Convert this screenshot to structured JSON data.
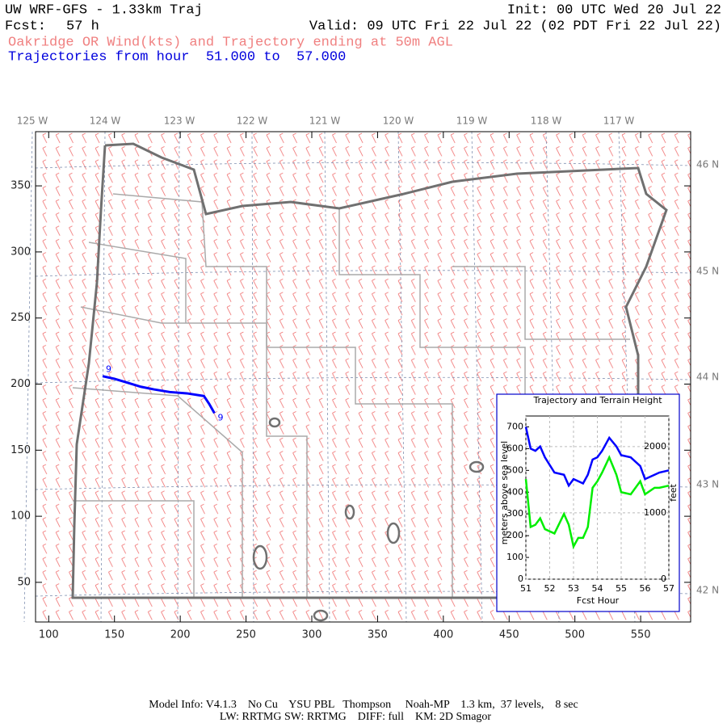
{
  "header": {
    "title": "UW WRF-GFS - 1.33km Traj",
    "init": "Init: 00 UTC Wed 20 Jul 22",
    "fcst_label": "Fcst:",
    "fcst": "57 h",
    "valid": "Valid: 09 UTC Fri 22 Jul 22 (02 PDT Fri 22 Jul 22)",
    "subtitle": "Oakridge OR Wind(kts) and Trajectory ending at 50m AGL",
    "trajectories": "Trajectories from hour  51.000 to  57.000"
  },
  "map": {
    "type": "trajectory-map",
    "xlim": [
      90,
      588
    ],
    "ylim": [
      20,
      391
    ],
    "xticks": [
      100,
      150,
      200,
      250,
      300,
      350,
      400,
      450,
      500,
      550
    ],
    "yticks": [
      50,
      100,
      150,
      200,
      250,
      300,
      350
    ],
    "lon_labels": [
      "125 W",
      "124 W",
      "123 W",
      "122 W",
      "121 W",
      "120 W",
      "119 W",
      "118 W",
      "117 W"
    ],
    "lat_labels": [
      "46 N",
      "45 N",
      "44 N",
      "43 N",
      "42 N"
    ],
    "trajectory": {
      "color": "#0000ff",
      "x": [
        141,
        150,
        160,
        170,
        180,
        192,
        205,
        218,
        222,
        226
      ],
      "y": [
        206,
        204,
        201,
        198,
        196,
        194,
        193,
        191,
        185,
        178
      ]
    },
    "trajectory_labels": [
      "9",
      "9"
    ]
  },
  "chart_data": {
    "type": "line",
    "title": "Trajectory and Terrain Height",
    "x_label": "Fcst Hour",
    "y_label": "meters above sea level",
    "y2_label": "feet",
    "x": [
      51,
      51.2,
      51.4,
      51.6,
      51.8,
      52.2,
      52.6,
      52.8,
      53.0,
      53.2,
      53.4,
      53.6,
      53.8,
      54.0,
      54.2,
      54.5,
      54.8,
      55.0,
      55.4,
      55.8,
      56.0,
      56.4,
      56.6,
      57.0
    ],
    "xlim": [
      51,
      57
    ],
    "xticks": [
      51,
      52,
      53,
      54,
      55,
      56,
      57
    ],
    "ylim": [
      0,
      750
    ],
    "yticks": [
      0,
      100,
      200,
      300,
      400,
      500,
      600,
      700
    ],
    "y2lim": [
      0,
      2461
    ],
    "y2ticks": [
      0,
      1000,
      2000
    ],
    "grid": true,
    "series": [
      {
        "name": "trajectory",
        "color": "#0000ff",
        "values": [
          700,
          600,
          590,
          610,
          560,
          490,
          480,
          430,
          460,
          450,
          440,
          480,
          550,
          560,
          590,
          650,
          610,
          570,
          560,
          520,
          460,
          480,
          490,
          500
        ]
      },
      {
        "name": "terrain",
        "color": "#00ee00",
        "values": [
          460,
          240,
          250,
          280,
          230,
          210,
          300,
          250,
          150,
          190,
          190,
          240,
          420,
          450,
          490,
          560,
          480,
          400,
          390,
          450,
          390,
          420,
          420,
          430
        ]
      }
    ]
  },
  "footer": {
    "line1": "Model Info: V4.1.3    No Cu    YSU PBL   Thompson     Noah-MP    1.3 km,  37 levels,    8 sec",
    "line2": "LW: RRTMG SW: RRTMG    DIFF: full    KM: 2D Smagor"
  }
}
